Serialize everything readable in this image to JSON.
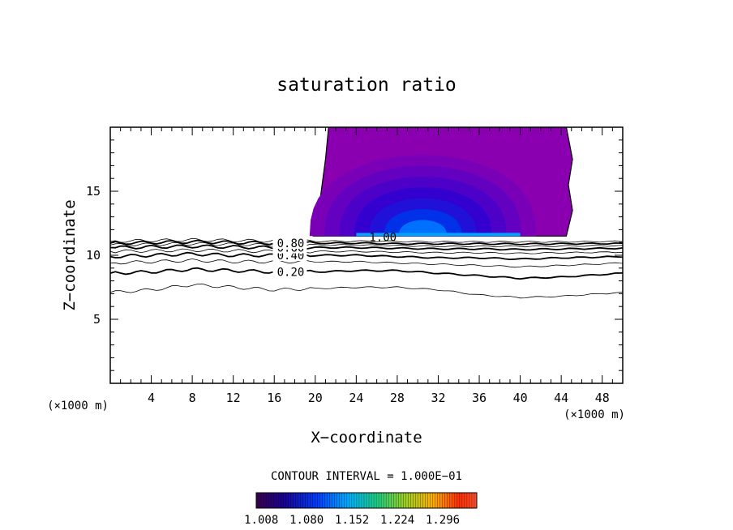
{
  "chart_data": {
    "type": "contour",
    "title": "saturation ratio",
    "xlabel": "X−coordinate",
    "ylabel": "Z−coordinate",
    "x_unit": "(×1000 m)",
    "y_unit": "(×1000 m)",
    "xlim": [
      0,
      50
    ],
    "ylim": [
      0,
      20
    ],
    "x_ticks": [
      {
        "value": 4,
        "label": "4"
      },
      {
        "value": 8,
        "label": "8"
      },
      {
        "value": 12,
        "label": "12"
      },
      {
        "value": 16,
        "label": "16"
      },
      {
        "value": 20,
        "label": "20"
      },
      {
        "value": 24,
        "label": "24"
      },
      {
        "value": 28,
        "label": "28"
      },
      {
        "value": 32,
        "label": "32"
      },
      {
        "value": 36,
        "label": "36"
      },
      {
        "value": 40,
        "label": "40"
      },
      {
        "value": 44,
        "label": "44"
      },
      {
        "value": 48,
        "label": "48"
      }
    ],
    "y_ticks": [
      {
        "value": 5,
        "label": "5"
      },
      {
        "value": 10,
        "label": "10"
      },
      {
        "value": 15,
        "label": "15"
      }
    ],
    "contour_interval_text": "CONTOUR INTERVAL = 1.000E−01",
    "contours": [
      {
        "level": 0.1,
        "label": "",
        "bold": false,
        "z": [
          7.1,
          7.3,
          7.7,
          7.5,
          7.3,
          7.4,
          7.5,
          7.5,
          7.3,
          6.9,
          6.7,
          6.8,
          7.1
        ]
      },
      {
        "level": 0.2,
        "label": "0.20",
        "bold": true,
        "z": [
          8.6,
          8.7,
          8.9,
          8.8,
          8.7,
          8.7,
          8.8,
          8.8,
          8.6,
          8.4,
          8.2,
          8.3,
          8.6
        ]
      },
      {
        "level": 0.3,
        "label": "",
        "bold": false,
        "z": [
          9.4,
          9.5,
          9.6,
          9.5,
          9.5,
          9.5,
          9.5,
          9.4,
          9.3,
          9.2,
          9.1,
          9.2,
          9.4
        ]
      },
      {
        "level": 0.4,
        "label": "0.40",
        "bold": true,
        "z": [
          9.9,
          10.0,
          10.1,
          10.0,
          10.0,
          10.0,
          10.0,
          9.9,
          9.8,
          9.8,
          9.7,
          9.8,
          9.9
        ]
      },
      {
        "level": 0.5,
        "label": "",
        "bold": false,
        "z": [
          10.3,
          10.35,
          10.4,
          10.35,
          10.3,
          10.3,
          10.3,
          10.25,
          10.2,
          10.2,
          10.15,
          10.2,
          10.25
        ]
      },
      {
        "level": 0.6,
        "label": "0.60",
        "bold": true,
        "z": [
          10.6,
          10.65,
          10.7,
          10.65,
          10.6,
          10.6,
          10.6,
          10.55,
          10.5,
          10.5,
          10.45,
          10.5,
          10.55
        ]
      },
      {
        "level": 0.7,
        "label": "",
        "bold": false,
        "z": [
          10.8,
          10.85,
          10.9,
          10.85,
          10.8,
          10.8,
          10.8,
          10.75,
          10.7,
          10.7,
          10.7,
          10.72,
          10.75
        ]
      },
      {
        "level": 0.8,
        "label": "0.80",
        "bold": true,
        "z": [
          10.95,
          11.0,
          11.05,
          11.0,
          10.95,
          10.95,
          10.95,
          10.9,
          10.9,
          10.9,
          10.88,
          10.9,
          10.92
        ]
      },
      {
        "level": 0.9,
        "label": "",
        "bold": false,
        "z": [
          11.1,
          11.15,
          11.2,
          11.15,
          11.12,
          11.1,
          11.1,
          11.08,
          11.05,
          11.05,
          11.05,
          11.05,
          11.08
        ]
      }
    ],
    "contour_x": [
      0,
      4,
      8,
      12,
      16,
      20,
      24,
      28,
      32,
      36,
      40,
      44,
      50
    ],
    "label_100": "1.00",
    "shaded_region": {
      "description_levels": [
        "1.008",
        "1.080",
        "1.152",
        "1.224",
        "1.296"
      ],
      "x_range": [
        21,
        44.5
      ],
      "z_base": 11.5,
      "z_top": 20
    },
    "colorbar": {
      "labels": [
        "1.008",
        "1.080",
        "1.152",
        "1.224",
        "1.296"
      ],
      "min": 1.0,
      "max": 1.35
    }
  }
}
